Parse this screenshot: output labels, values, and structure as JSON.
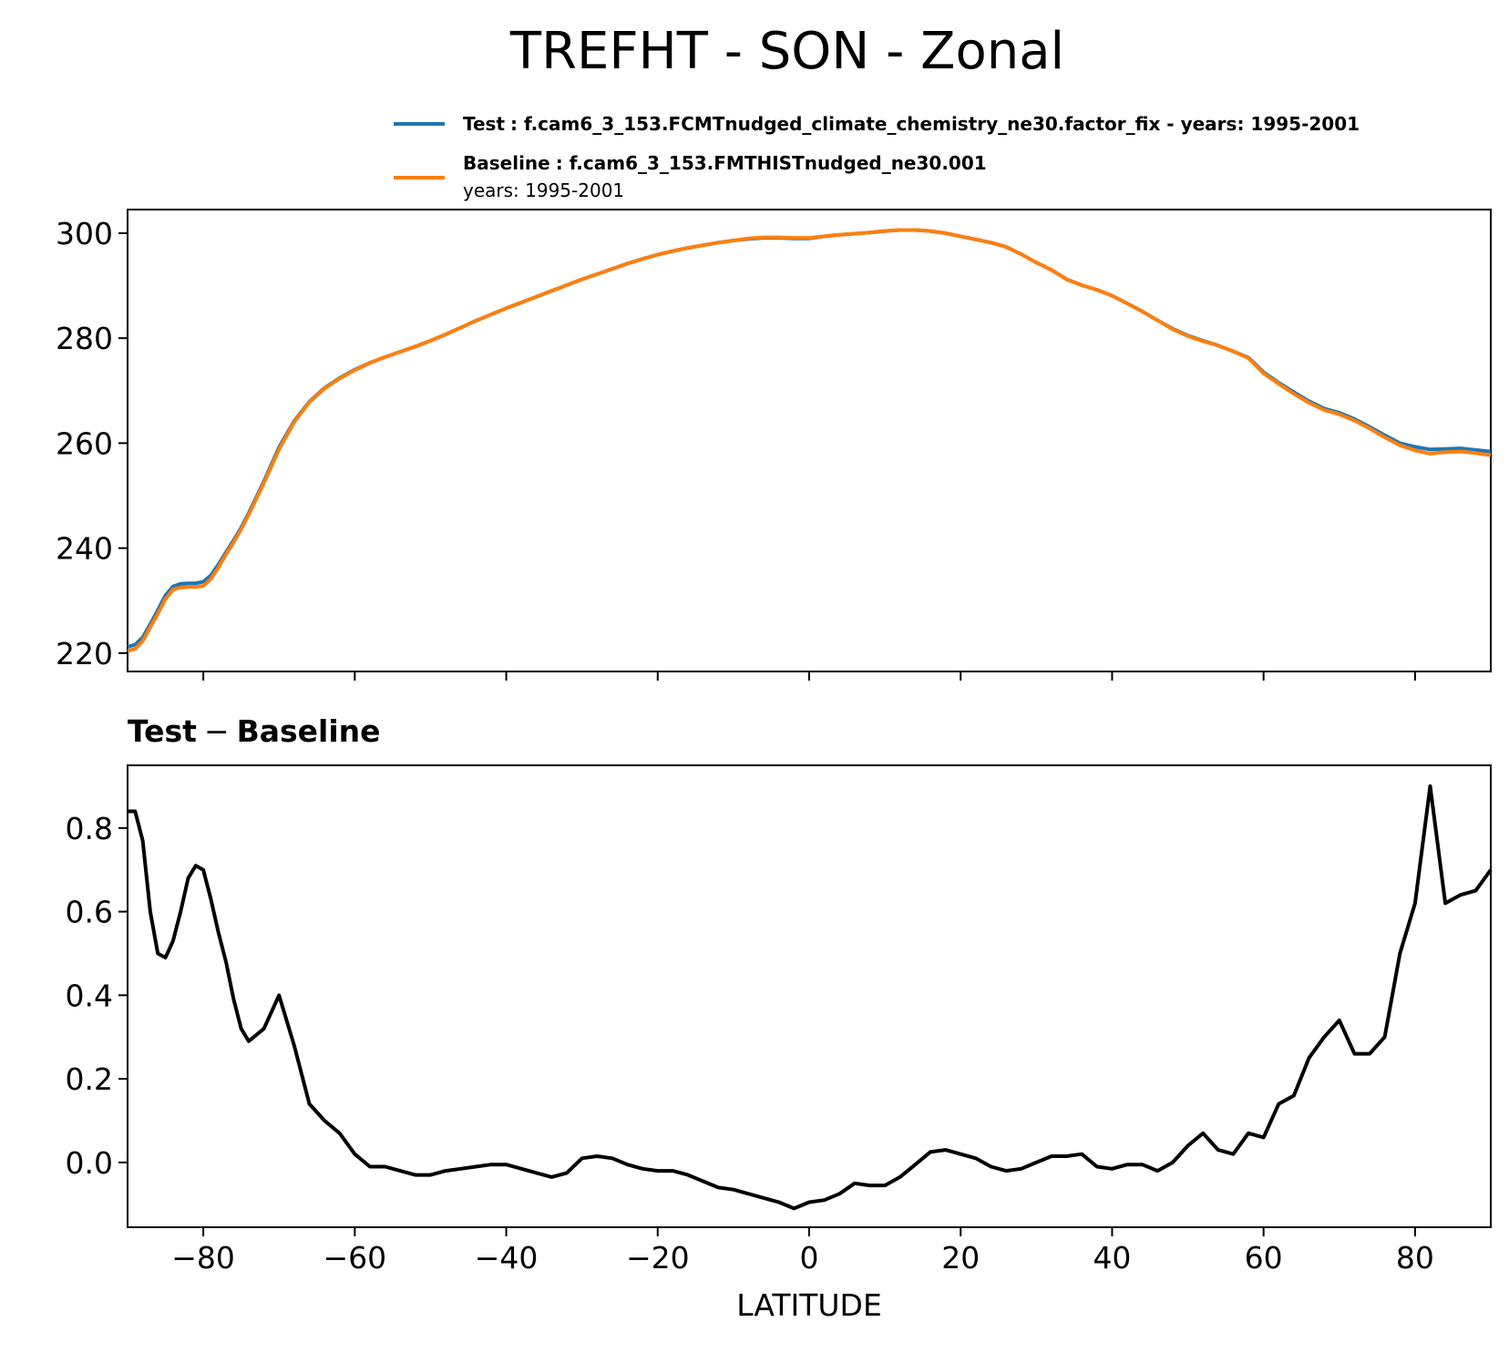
{
  "figure": {
    "title": "TREFHT - SON - Zonal",
    "colors": {
      "test": "#1f77b4",
      "baseline": "#ff7f0e",
      "diff": "#000000"
    },
    "legend": {
      "test_label": "Test",
      "test_text": ": f.cam6_3_153.FCMTnudged_climate_chemistry_ne30.factor_fix - years: 1995-2001",
      "baseline_label": "Baseline",
      "baseline_text": ": f.cam6_3_153.FMTHISTnudged_ne30.001",
      "baseline_years": "years: 1995-2001"
    },
    "diff_title_test": "Test",
    "diff_title_sep": "−",
    "diff_title_baseline": "Baseline",
    "xlabel": "LATITUDE"
  },
  "chart_data": [
    {
      "type": "line",
      "title": "",
      "xlabel": "",
      "ylabel": "",
      "xlim": [
        -90,
        90
      ],
      "ylim": [
        216.5,
        304.5
      ],
      "yticks": [
        220,
        240,
        260,
        280,
        300
      ],
      "ytick_labels": [
        "220",
        "240",
        "260",
        "280",
        "300"
      ],
      "xticks": [
        -80,
        -60,
        -40,
        -20,
        0,
        20,
        40,
        60,
        80
      ],
      "x": [
        -90,
        -89,
        -88,
        -87,
        -86,
        -85,
        -84,
        -83,
        -82,
        -81,
        -80,
        -79,
        -78,
        -77,
        -76,
        -75,
        -74,
        -72,
        -70,
        -68,
        -66,
        -64,
        -62,
        -60,
        -58,
        -56,
        -54,
        -52,
        -50,
        -48,
        -46,
        -44,
        -42,
        -40,
        -38,
        -36,
        -34,
        -32,
        -30,
        -28,
        -26,
        -24,
        -22,
        -20,
        -18,
        -16,
        -14,
        -12,
        -10,
        -8,
        -6,
        -4,
        -2,
        0,
        2,
        4,
        6,
        8,
        10,
        12,
        14,
        16,
        18,
        20,
        22,
        24,
        26,
        28,
        30,
        32,
        34,
        36,
        38,
        40,
        42,
        44,
        46,
        48,
        50,
        52,
        54,
        56,
        58,
        60,
        62,
        64,
        66,
        68,
        70,
        72,
        74,
        76,
        78,
        80,
        82,
        84,
        86,
        88,
        90
      ],
      "series": [
        {
          "name": "Test",
          "values": [
            221.2,
            221.6,
            223.0,
            225.5,
            228.2,
            231.0,
            232.7,
            233.2,
            233.3,
            233.3,
            233.6,
            234.8,
            236.9,
            239.2,
            241.5,
            243.9,
            246.7,
            252.7,
            259.2,
            264.2,
            267.9,
            270.5,
            272.4,
            274.0,
            275.3,
            276.4,
            277.4,
            278.4,
            279.5,
            280.7,
            282.0,
            283.3,
            284.5,
            285.7,
            286.8,
            287.9,
            289.0,
            290.1,
            291.2,
            292.2,
            293.2,
            294.2,
            295.1,
            295.9,
            296.6,
            297.2,
            297.7,
            298.2,
            298.6,
            298.9,
            299.1,
            299.1,
            299.0,
            299.0,
            299.4,
            299.7,
            299.9,
            300.1,
            300.4,
            300.6,
            300.6,
            300.4,
            300.0,
            299.4,
            298.8,
            298.2,
            297.4,
            296.0,
            294.4,
            293.0,
            291.2,
            290.1,
            289.2,
            288.1,
            286.6,
            285.1,
            283.4,
            281.8,
            280.5,
            279.5,
            278.6,
            277.5,
            276.3,
            273.5,
            271.5,
            269.7,
            268.0,
            266.6,
            265.8,
            264.6,
            263.1,
            261.5,
            260.0,
            259.3,
            258.8,
            258.9,
            259.0,
            258.7,
            258.4
          ]
        },
        {
          "name": "Baseline",
          "values": [
            220.4,
            220.8,
            222.3,
            224.9,
            227.5,
            230.3,
            232.1,
            232.5,
            232.6,
            232.6,
            232.8,
            234.1,
            236.3,
            238.8,
            241.1,
            243.6,
            246.4,
            252.4,
            258.8,
            264.0,
            267.8,
            270.4,
            272.3,
            273.9,
            275.3,
            276.4,
            277.4,
            278.4,
            279.5,
            280.7,
            282.0,
            283.3,
            284.5,
            285.7,
            286.8,
            287.9,
            289.0,
            290.1,
            291.2,
            292.2,
            293.2,
            294.2,
            295.1,
            295.9,
            296.6,
            297.2,
            297.7,
            298.2,
            298.6,
            299.0,
            299.2,
            299.2,
            299.1,
            299.1,
            299.4,
            299.7,
            299.9,
            300.1,
            300.4,
            300.6,
            300.6,
            300.4,
            300.0,
            299.4,
            298.8,
            298.2,
            297.4,
            296.0,
            294.4,
            293.0,
            291.2,
            290.1,
            289.2,
            288.1,
            286.6,
            285.1,
            283.4,
            281.7,
            280.4,
            279.4,
            278.6,
            277.5,
            276.2,
            273.3,
            271.3,
            269.4,
            267.7,
            266.3,
            265.5,
            264.3,
            262.8,
            261.1,
            259.6,
            258.6,
            258.0,
            258.3,
            258.4,
            258.1,
            257.7
          ]
        }
      ]
    },
    {
      "type": "line",
      "title": "Test − Baseline",
      "xlabel": "LATITUDE",
      "ylabel": "",
      "xlim": [
        -90,
        90
      ],
      "ylim": [
        -0.155,
        0.95
      ],
      "yticks": [
        0.0,
        0.2,
        0.4,
        0.6,
        0.8
      ],
      "ytick_labels": [
        "0.0",
        "0.2",
        "0.4",
        "0.6",
        "0.8"
      ],
      "xticks": [
        -80,
        -60,
        -40,
        -20,
        0,
        20,
        40,
        60,
        80
      ],
      "xtick_labels": [
        "−80",
        "−60",
        "−40",
        "−20",
        "0",
        "20",
        "40",
        "60",
        "80"
      ],
      "x": [
        -90,
        -89,
        -88,
        -87,
        -86,
        -85,
        -84,
        -83,
        -82,
        -81,
        -80,
        -79,
        -78,
        -77,
        -76,
        -75,
        -74,
        -72,
        -70,
        -68,
        -66,
        -64,
        -62,
        -60,
        -58,
        -56,
        -54,
        -52,
        -50,
        -48,
        -46,
        -44,
        -42,
        -40,
        -38,
        -36,
        -34,
        -32,
        -30,
        -28,
        -26,
        -24,
        -22,
        -20,
        -18,
        -16,
        -14,
        -12,
        -10,
        -8,
        -6,
        -4,
        -2,
        0,
        2,
        4,
        6,
        8,
        10,
        12,
        14,
        16,
        18,
        20,
        22,
        24,
        26,
        28,
        30,
        32,
        34,
        36,
        38,
        40,
        42,
        44,
        46,
        48,
        50,
        52,
        54,
        56,
        58,
        60,
        62,
        64,
        66,
        68,
        70,
        72,
        74,
        76,
        78,
        80,
        82,
        84,
        86,
        88,
        90
      ],
      "series": [
        {
          "name": "Test − Baseline",
          "values": [
            0.84,
            0.84,
            0.77,
            0.6,
            0.5,
            0.49,
            0.53,
            0.6,
            0.68,
            0.71,
            0.7,
            0.63,
            0.55,
            0.48,
            0.39,
            0.32,
            0.29,
            0.32,
            0.4,
            0.28,
            0.14,
            0.1,
            0.07,
            0.02,
            -0.01,
            -0.01,
            -0.02,
            -0.03,
            -0.03,
            -0.02,
            -0.015,
            -0.01,
            -0.005,
            -0.005,
            -0.015,
            -0.025,
            -0.035,
            -0.025,
            0.01,
            0.015,
            0.01,
            -0.005,
            -0.015,
            -0.02,
            -0.02,
            -0.03,
            -0.045,
            -0.06,
            -0.065,
            -0.075,
            -0.085,
            -0.095,
            -0.11,
            -0.095,
            -0.09,
            -0.075,
            -0.05,
            -0.055,
            -0.055,
            -0.035,
            -0.005,
            0.025,
            0.03,
            0.02,
            0.01,
            -0.01,
            -0.02,
            -0.015,
            0.0,
            0.015,
            0.015,
            0.02,
            -0.01,
            -0.015,
            -0.005,
            -0.005,
            -0.02,
            0.0,
            0.04,
            0.07,
            0.03,
            0.02,
            0.07,
            0.06,
            0.14,
            0.16,
            0.25,
            0.3,
            0.34,
            0.26,
            0.26,
            0.3,
            0.5,
            0.62,
            0.9,
            0.62,
            0.64,
            0.65,
            0.7
          ]
        }
      ]
    }
  ]
}
